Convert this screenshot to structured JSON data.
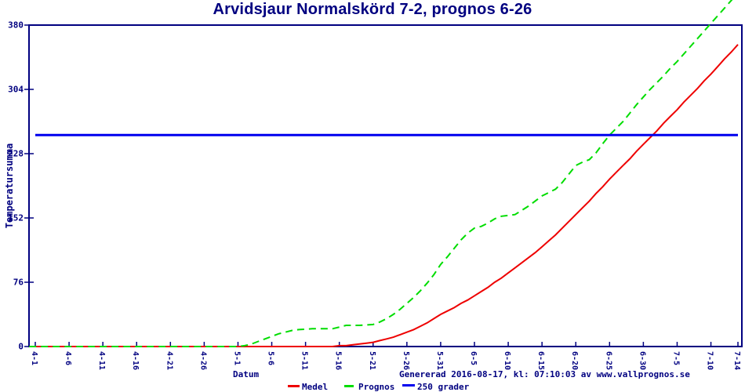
{
  "title": "Arvidsjaur Normalskörd 7-2, prognos 6-26",
  "y_axis_label": "Temperatursumma",
  "x_axis_label": "Datum",
  "footer": {
    "generated_text": "Genererad 2016-08-17, kl: 07:10:03 av www.vallprognos.se"
  },
  "colors": {
    "navy": "#000080",
    "red": "#ee0000",
    "green": "#00dd00",
    "blue": "#0000ee",
    "background": "#ffffff"
  },
  "legend": [
    {
      "label": "Medel",
      "color": "#ee0000",
      "style": "solid"
    },
    {
      "label": "Prognos",
      "color": "#00dd00",
      "style": "dashed"
    },
    {
      "label": "250 grader",
      "color": "#0000ee",
      "style": "solid"
    }
  ],
  "chart_data": {
    "type": "line",
    "title": "Arvidsjaur Normalskörd 7-2, prognos 6-26",
    "xlabel": "Datum",
    "ylabel": "Temperatursumma",
    "x_unit": "days since 4-1",
    "x_tick_labels": [
      "4-1",
      "4-6",
      "4-11",
      "4-16",
      "4-21",
      "4-26",
      "5-1",
      "5-6",
      "5-11",
      "5-16",
      "5-21",
      "5-26",
      "5-31",
      "6-5",
      "6-10",
      "6-15",
      "6-20",
      "6-25",
      "6-30",
      "7-5",
      "7-10",
      "7-14"
    ],
    "x_tick_days": [
      0,
      5,
      10,
      15,
      20,
      25,
      30,
      35,
      40,
      45,
      50,
      55,
      60,
      65,
      70,
      75,
      80,
      85,
      90,
      95,
      100,
      104
    ],
    "y_ticks": [
      0,
      76,
      152,
      228,
      304,
      380
    ],
    "ylim": [
      0,
      380
    ],
    "grid": false,
    "legend_position": "bottom",
    "reference_line": {
      "name": "250 grader",
      "value": 250,
      "color": "#0000ee"
    },
    "series": [
      {
        "name": "Medel",
        "color": "#ee0000",
        "style": "solid",
        "points": [
          [
            -0.9,
            0
          ],
          [
            10,
            0
          ],
          [
            20,
            0
          ],
          [
            30,
            0
          ],
          [
            40,
            0
          ],
          [
            44,
            0
          ],
          [
            45,
            1
          ],
          [
            46,
            1
          ],
          [
            47,
            2
          ],
          [
            48,
            3
          ],
          [
            49,
            4
          ],
          [
            50,
            5
          ],
          [
            51,
            7
          ],
          [
            52,
            9
          ],
          [
            53,
            11
          ],
          [
            54,
            14
          ],
          [
            55,
            17
          ],
          [
            56,
            20
          ],
          [
            57,
            24
          ],
          [
            58,
            28
          ],
          [
            59,
            33
          ],
          [
            60,
            38
          ],
          [
            61,
            42
          ],
          [
            62,
            46
          ],
          [
            63,
            51
          ],
          [
            64,
            55
          ],
          [
            65,
            60
          ],
          [
            66,
            65
          ],
          [
            67,
            70
          ],
          [
            68,
            76
          ],
          [
            69,
            81
          ],
          [
            70,
            87
          ],
          [
            71,
            93
          ],
          [
            72,
            99
          ],
          [
            73,
            105
          ],
          [
            74,
            111
          ],
          [
            75,
            118
          ],
          [
            76,
            125
          ],
          [
            77,
            132
          ],
          [
            78,
            140
          ],
          [
            79,
            148
          ],
          [
            80,
            156
          ],
          [
            81,
            164
          ],
          [
            82,
            172
          ],
          [
            83,
            181
          ],
          [
            84,
            189
          ],
          [
            85,
            198
          ],
          [
            86,
            206
          ],
          [
            87,
            214
          ],
          [
            88,
            222
          ],
          [
            89,
            231
          ],
          [
            90,
            239
          ],
          [
            91,
            247
          ],
          [
            92,
            255
          ],
          [
            93,
            264
          ],
          [
            94,
            272
          ],
          [
            95,
            280
          ],
          [
            96,
            289
          ],
          [
            97,
            297
          ],
          [
            98,
            305
          ],
          [
            99,
            314
          ],
          [
            100,
            322
          ],
          [
            101,
            331
          ],
          [
            102,
            340
          ],
          [
            103,
            348
          ],
          [
            104,
            357
          ]
        ]
      },
      {
        "name": "Prognos",
        "color": "#00dd00",
        "style": "dashed",
        "points": [
          [
            -0.9,
            0
          ],
          [
            5,
            0
          ],
          [
            10,
            0
          ],
          [
            15,
            0
          ],
          [
            20,
            0
          ],
          [
            25,
            0
          ],
          [
            30,
            0
          ],
          [
            31,
            1
          ],
          [
            32,
            3
          ],
          [
            33,
            6
          ],
          [
            34,
            9
          ],
          [
            35,
            12
          ],
          [
            36,
            15
          ],
          [
            37,
            17
          ],
          [
            38,
            19
          ],
          [
            39,
            20
          ],
          [
            41,
            21
          ],
          [
            44,
            21
          ],
          [
            45,
            23
          ],
          [
            46,
            25
          ],
          [
            48,
            25
          ],
          [
            50,
            26
          ],
          [
            51,
            29
          ],
          [
            52,
            33
          ],
          [
            53,
            38
          ],
          [
            54,
            44
          ],
          [
            55,
            51
          ],
          [
            56,
            58
          ],
          [
            57,
            66
          ],
          [
            58,
            75
          ],
          [
            59,
            85
          ],
          [
            60,
            97
          ],
          [
            61,
            106
          ],
          [
            62,
            116
          ],
          [
            63,
            126
          ],
          [
            64,
            134
          ],
          [
            65,
            140
          ],
          [
            66,
            142
          ],
          [
            67,
            146
          ],
          [
            68,
            151
          ],
          [
            69,
            154
          ],
          [
            70,
            155
          ],
          [
            71,
            156
          ],
          [
            72,
            161
          ],
          [
            73,
            166
          ],
          [
            74,
            172
          ],
          [
            75,
            178
          ],
          [
            76,
            182
          ],
          [
            77,
            186
          ],
          [
            78,
            194
          ],
          [
            79,
            204
          ],
          [
            80,
            214
          ],
          [
            81,
            218
          ],
          [
            82,
            221
          ],
          [
            83,
            229
          ],
          [
            84,
            240
          ],
          [
            85,
            250
          ],
          [
            86,
            258
          ],
          [
            87,
            266
          ],
          [
            88,
            276
          ],
          [
            89,
            286
          ],
          [
            90,
            295
          ],
          [
            91,
            304
          ],
          [
            92,
            312
          ],
          [
            93,
            320
          ],
          [
            94,
            329
          ],
          [
            95,
            337
          ],
          [
            96,
            346
          ],
          [
            97,
            355
          ],
          [
            98,
            364
          ],
          [
            99,
            373
          ],
          [
            100,
            382
          ],
          [
            101,
            391
          ],
          [
            102,
            400
          ],
          [
            103,
            409
          ],
          [
            104,
            418
          ]
        ]
      }
    ]
  }
}
